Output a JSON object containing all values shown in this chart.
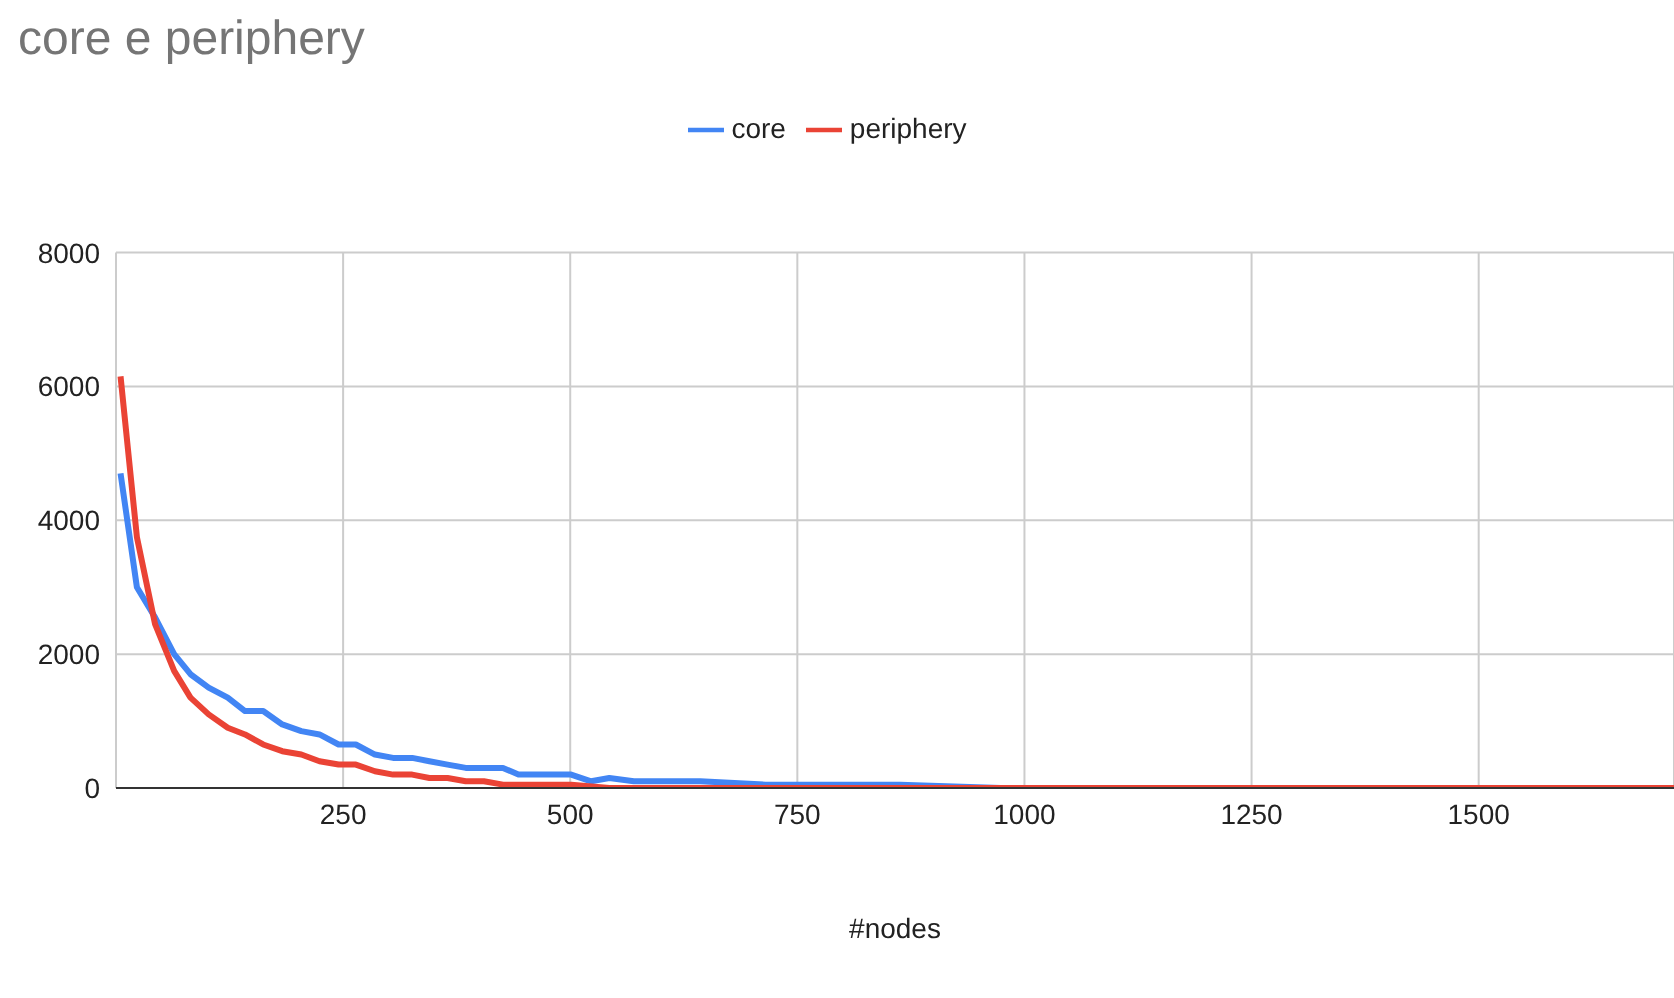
{
  "chart_data": {
    "type": "line",
    "title": "core e periphery",
    "xlabel": "#nodes",
    "xlim": [
      0,
      1715
    ],
    "xticks": [
      250,
      500,
      750,
      1000,
      1250,
      1500
    ],
    "ylim": [
      0,
      8000
    ],
    "yticks": [
      0,
      2000,
      4000,
      6000,
      8000
    ],
    "grid": true,
    "legend": "top",
    "marker": "none",
    "series": [
      {
        "name": "core",
        "color": "#4285f4",
        "x": [
          5,
          23,
          43,
          64,
          82,
          102,
          123,
          142,
          162,
          183,
          204,
          224,
          245,
          264,
          285,
          305,
          326,
          345,
          365,
          385,
          405,
          426,
          443,
          464,
          484,
          501,
          523,
          543,
          570,
          643,
          715,
          790,
          863,
          974,
          1715
        ],
        "values": [
          4700,
          3000,
          2550,
          2000,
          1700,
          1500,
          1350,
          1150,
          1150,
          950,
          850,
          800,
          650,
          650,
          500,
          450,
          450,
          400,
          350,
          300,
          300,
          300,
          200,
          200,
          200,
          200,
          100,
          150,
          100,
          100,
          50,
          50,
          50,
          0,
          0
        ]
      },
      {
        "name": "periphery",
        "color": "#ea4335",
        "x": [
          5,
          23,
          43,
          64,
          82,
          102,
          123,
          142,
          162,
          183,
          204,
          224,
          245,
          264,
          285,
          305,
          326,
          345,
          365,
          385,
          405,
          426,
          443,
          464,
          501,
          543,
          643,
          790,
          974,
          1715
        ],
        "values": [
          6150,
          3750,
          2450,
          1750,
          1350,
          1100,
          900,
          800,
          650,
          550,
          500,
          400,
          350,
          350,
          250,
          200,
          200,
          150,
          150,
          100,
          100,
          50,
          50,
          50,
          50,
          0,
          0,
          0,
          0,
          0
        ]
      }
    ]
  }
}
